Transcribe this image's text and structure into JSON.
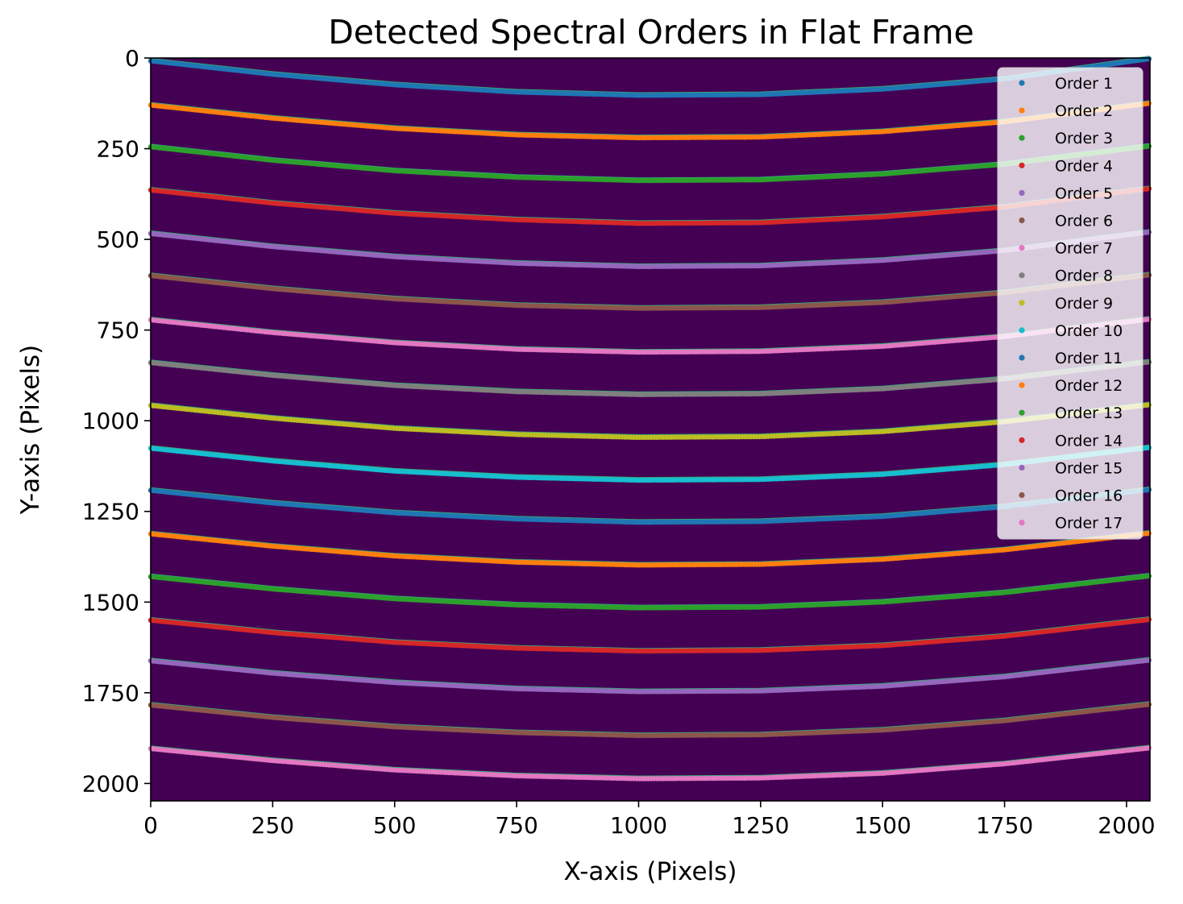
{
  "chart_data": {
    "type": "scatter",
    "title": "Detected Spectral Orders in Flat Frame",
    "xlabel": "X-axis (Pixels)",
    "ylabel": "Y-axis (Pixels)",
    "xlim": [
      0,
      2048
    ],
    "ylim": [
      2048,
      0
    ],
    "y_inverted": true,
    "x_ticks": [
      0,
      250,
      500,
      750,
      1000,
      1250,
      1500,
      1750,
      2000
    ],
    "y_ticks": [
      0,
      250,
      500,
      750,
      1000,
      1250,
      1500,
      1750,
      2000
    ],
    "background": "#440154",
    "trace_color": "#35b779",
    "grid": false,
    "legend_position": "top-right",
    "series": [
      {
        "name": "Order 1",
        "color": "#1f77b4",
        "x": [
          0,
          250,
          500,
          750,
          1000,
          1250,
          1500,
          1750,
          2048
        ],
        "y": [
          8,
          45,
          74,
          94,
          103,
          101,
          86,
          58,
          2
        ]
      },
      {
        "name": "Order 2",
        "color": "#ff7f0e",
        "x": [
          0,
          250,
          500,
          750,
          1000,
          1250,
          1500,
          1750,
          2048
        ],
        "y": [
          130,
          166,
          194,
          212,
          220,
          218,
          203,
          176,
          125
        ]
      },
      {
        "name": "Order 3",
        "color": "#2ca02c",
        "x": [
          0,
          250,
          500,
          750,
          1000,
          1250,
          1500,
          1750,
          2048
        ],
        "y": [
          245,
          282,
          311,
          329,
          338,
          336,
          320,
          293,
          243
        ]
      },
      {
        "name": "Order 4",
        "color": "#d62728",
        "x": [
          0,
          250,
          500,
          750,
          1000,
          1250,
          1500,
          1750,
          2048
        ],
        "y": [
          364,
          400,
          428,
          446,
          456,
          454,
          438,
          411,
          360
        ]
      },
      {
        "name": "Order 5",
        "color": "#9467bd",
        "x": [
          0,
          250,
          500,
          750,
          1000,
          1250,
          1500,
          1750,
          2048
        ],
        "y": [
          484,
          520,
          548,
          566,
          575,
          573,
          558,
          531,
          480
        ]
      },
      {
        "name": "Order 6",
        "color": "#8c564b",
        "x": [
          0,
          250,
          500,
          750,
          1000,
          1250,
          1500,
          1750,
          2048
        ],
        "y": [
          600,
          636,
          664,
          682,
          690,
          688,
          674,
          647,
          598
        ]
      },
      {
        "name": "Order 7",
        "color": "#e377c2",
        "x": [
          0,
          250,
          500,
          750,
          1000,
          1250,
          1500,
          1750,
          2048
        ],
        "y": [
          722,
          757,
          785,
          803,
          811,
          809,
          795,
          768,
          720
        ]
      },
      {
        "name": "Order 8",
        "color": "#7f7f7f",
        "x": [
          0,
          250,
          500,
          750,
          1000,
          1250,
          1500,
          1750,
          2048
        ],
        "y": [
          840,
          875,
          903,
          920,
          928,
          926,
          912,
          885,
          838
        ]
      },
      {
        "name": "Order 9",
        "color": "#bcbd22",
        "x": [
          0,
          250,
          500,
          750,
          1000,
          1250,
          1500,
          1750,
          2048
        ],
        "y": [
          958,
          993,
          1021,
          1038,
          1046,
          1044,
          1030,
          1003,
          956
        ]
      },
      {
        "name": "Order 10",
        "color": "#17becf",
        "x": [
          0,
          250,
          500,
          750,
          1000,
          1250,
          1500,
          1750,
          2048
        ],
        "y": [
          1076,
          1111,
          1139,
          1156,
          1164,
          1162,
          1148,
          1121,
          1074
        ]
      },
      {
        "name": "Order 11",
        "color": "#1f77b4",
        "x": [
          0,
          250,
          500,
          750,
          1000,
          1250,
          1500,
          1750,
          2048
        ],
        "y": [
          1192,
          1227,
          1254,
          1271,
          1280,
          1278,
          1264,
          1237,
          1190
        ]
      },
      {
        "name": "Order 12",
        "color": "#ff7f0e",
        "x": [
          0,
          250,
          500,
          750,
          1000,
          1250,
          1500,
          1750,
          2048
        ],
        "y": [
          1312,
          1346,
          1373,
          1390,
          1398,
          1396,
          1382,
          1356,
          1310
        ]
      },
      {
        "name": "Order 13",
        "color": "#2ca02c",
        "x": [
          0,
          250,
          500,
          750,
          1000,
          1250,
          1500,
          1750,
          2048
        ],
        "y": [
          1430,
          1464,
          1491,
          1508,
          1516,
          1514,
          1500,
          1474,
          1428
        ]
      },
      {
        "name": "Order 14",
        "color": "#d62728",
        "x": [
          0,
          250,
          500,
          750,
          1000,
          1250,
          1500,
          1750,
          2048
        ],
        "y": [
          1550,
          1584,
          1611,
          1627,
          1635,
          1633,
          1620,
          1594,
          1548
        ]
      },
      {
        "name": "Order 15",
        "color": "#9467bd",
        "x": [
          0,
          250,
          500,
          750,
          1000,
          1250,
          1500,
          1750,
          2048
        ],
        "y": [
          1662,
          1696,
          1722,
          1739,
          1747,
          1745,
          1732,
          1706,
          1660
        ]
      },
      {
        "name": "Order 16",
        "color": "#8c564b",
        "x": [
          0,
          250,
          500,
          750,
          1000,
          1250,
          1500,
          1750,
          2048
        ],
        "y": [
          1784,
          1818,
          1844,
          1860,
          1868,
          1866,
          1853,
          1827,
          1782
        ]
      },
      {
        "name": "Order 17",
        "color": "#e377c2",
        "x": [
          0,
          250,
          500,
          750,
          1000,
          1250,
          1500,
          1750,
          2048
        ],
        "y": [
          1904,
          1937,
          1963,
          1979,
          1987,
          1985,
          1972,
          1946,
          1902
        ]
      }
    ]
  }
}
